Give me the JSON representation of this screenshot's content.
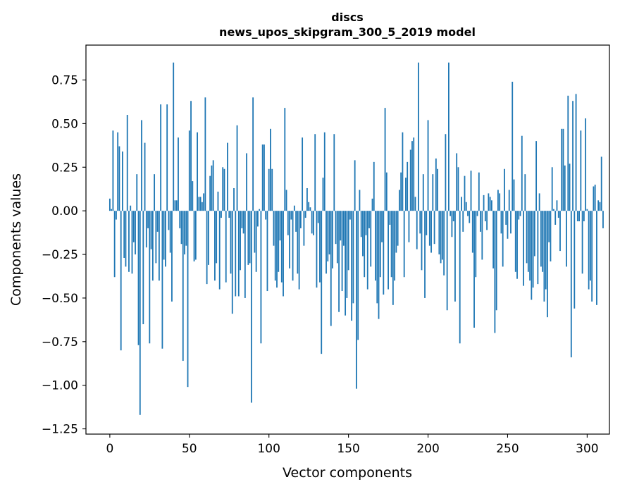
{
  "chart_data": {
    "type": "bar",
    "title": "discs",
    "subtitle": "news_upos_skipgram_300_5_2019 model",
    "xlabel": "Vector components",
    "ylabel": "Components values",
    "xlim": [
      -15,
      314
    ],
    "ylim": [
      -1.28,
      0.95
    ],
    "xticks": [
      0,
      50,
      100,
      150,
      200,
      250,
      300
    ],
    "yticks": [
      0.75,
      0.5,
      0.25,
      0.0,
      -0.25,
      -0.5,
      -0.75,
      -1.0,
      -1.25
    ],
    "ytick_labels": [
      "0.75",
      "0.50",
      "0.25",
      "0.00",
      "−0.25",
      "−0.50",
      "−0.75",
      "−1.00",
      "−1.25"
    ],
    "bar_color": "#1f77b4",
    "grid": false,
    "values": [
      0.07,
      0.01,
      0.46,
      -0.38,
      -0.05,
      0.45,
      0.37,
      -0.8,
      0.34,
      -0.27,
      -0.32,
      0.55,
      -0.35,
      0.03,
      -0.36,
      -0.18,
      -0.25,
      0.21,
      -0.77,
      -1.17,
      0.52,
      -0.65,
      0.39,
      -0.21,
      -0.1,
      -0.76,
      -0.22,
      -0.4,
      0.21,
      -0.3,
      -0.12,
      -0.4,
      0.61,
      -0.79,
      -0.28,
      -0.32,
      0.61,
      -0.11,
      -0.24,
      -0.52,
      0.85,
      0.06,
      0.06,
      0.42,
      -0.1,
      -0.19,
      -0.86,
      -0.25,
      -0.2,
      -1.01,
      0.46,
      0.63,
      0.17,
      -0.29,
      -0.28,
      0.45,
      0.08,
      0.08,
      0.05,
      0.1,
      0.65,
      -0.42,
      -0.31,
      0.2,
      0.26,
      0.29,
      -0.4,
      -0.3,
      0.11,
      -0.45,
      -0.04,
      0.25,
      0.24,
      -0.41,
      0.39,
      -0.04,
      -0.36,
      -0.59,
      0.13,
      -0.49,
      0.49,
      -0.49,
      -0.34,
      -0.1,
      -0.13,
      -0.5,
      0.33,
      -0.31,
      -0.3,
      -1.1,
      0.65,
      -0.24,
      -0.35,
      -0.09,
      0.01,
      -0.76,
      0.38,
      0.38,
      -0.05,
      -0.46,
      0.24,
      0.47,
      0.24,
      -0.2,
      -0.4,
      -0.44,
      -0.35,
      -0.17,
      -0.41,
      -0.49,
      0.59,
      0.12,
      -0.14,
      -0.33,
      -0.05,
      -0.4,
      0.03,
      -0.12,
      -0.36,
      -0.45,
      -0.1,
      0.42,
      -0.2,
      -0.04,
      0.13,
      0.05,
      0.02,
      -0.13,
      -0.14,
      0.44,
      -0.44,
      -0.07,
      -0.41,
      -0.82,
      0.19,
      0.45,
      -0.36,
      -0.29,
      -0.25,
      -0.66,
      -0.33,
      0.44,
      -0.19,
      -0.3,
      -0.58,
      -0.17,
      -0.46,
      -0.2,
      -0.6,
      -0.5,
      -0.34,
      -0.05,
      -0.63,
      -0.53,
      0.29,
      -1.02,
      -0.74,
      0.12,
      -0.15,
      -0.26,
      -0.38,
      -0.14,
      -0.45,
      -0.1,
      -0.32,
      0.07,
      0.28,
      -0.4,
      -0.53,
      -0.62,
      -0.38,
      -0.18,
      -0.48,
      0.59,
      0.22,
      -0.45,
      -0.08,
      -0.38,
      -0.54,
      -0.4,
      -0.24,
      -0.2,
      0.12,
      0.22,
      0.45,
      -0.38,
      0.19,
      0.28,
      -0.18,
      0.35,
      0.4,
      0.42,
      0.08,
      -0.22,
      0.85,
      -0.13,
      -0.34,
      0.21,
      -0.5,
      -0.14,
      0.52,
      -0.2,
      -0.24,
      0.21,
      -0.19,
      0.3,
      0.24,
      -0.25,
      -0.3,
      -0.28,
      -0.37,
      0.44,
      -0.57,
      0.85,
      -0.03,
      -0.15,
      -0.06,
      -0.52,
      0.33,
      0.25,
      -0.76,
      0.08,
      -0.12,
      0.2,
      0.05,
      -0.03,
      -0.07,
      0.23,
      -0.24,
      -0.67,
      -0.38,
      -0.03,
      0.22,
      -0.12,
      -0.28,
      0.09,
      -0.06,
      -0.11,
      0.1,
      0.08,
      0.06,
      -0.33,
      -0.7,
      -0.57,
      0.12,
      0.1,
      -0.13,
      -0.32,
      0.24,
      -0.08,
      -0.16,
      0.12,
      -0.13,
      0.74,
      0.18,
      -0.35,
      -0.39,
      -0.05,
      -0.03,
      0.43,
      -0.43,
      0.21,
      -0.3,
      -0.35,
      -0.4,
      -0.51,
      -0.44,
      -0.26,
      0.4,
      -0.42,
      0.1,
      -0.32,
      -0.35,
      -0.52,
      -0.45,
      -0.61,
      -0.18,
      -0.29,
      0.25,
      0.01,
      -0.08,
      0.06,
      -0.04,
      -0.23,
      0.47,
      0.47,
      0.26,
      -0.32,
      0.66,
      0.27,
      -0.84,
      0.63,
      -0.56,
      0.67,
      -0.06,
      -0.06,
      0.46,
      -0.36,
      -0.06,
      0.53,
      0.01,
      -0.45,
      -0.4,
      -0.52,
      0.14,
      0.15,
      -0.54,
      0.06,
      0.05,
      0.31,
      -0.1
    ]
  }
}
